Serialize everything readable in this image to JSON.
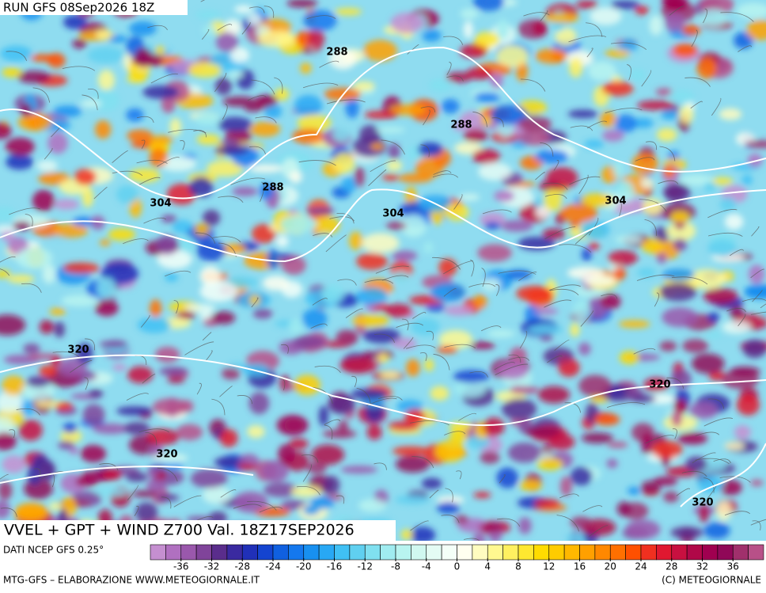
{
  "header": {
    "run": "RUN GFS 08Sep2026 18Z"
  },
  "map": {
    "contour_labels": [
      "288",
      "288",
      "288",
      "304",
      "304",
      "304",
      "320",
      "320",
      "320",
      "320"
    ]
  },
  "footer": {
    "title": "VVEL + GPT + WIND Z700 Val. 18Z17SEP2026",
    "source": "DATI NCEP GFS 0.25°",
    "credit_left": "MTG-GFS – ELABORAZIONE WWW.METEOGIORNALE.IT",
    "credit_right": "(C) METEOGIORNALE"
  },
  "colorbar": {
    "range": [
      -40,
      40
    ],
    "ticks": [
      -36,
      -32,
      -28,
      -24,
      -20,
      -16,
      -12,
      -8,
      -4,
      0,
      4,
      8,
      12,
      16,
      20,
      24,
      28,
      32,
      36
    ],
    "colors": [
      "#c58fd0",
      "#b070c0",
      "#9a58ac",
      "#80449a",
      "#5a2d8c",
      "#3a2aa0",
      "#2030b8",
      "#1444d0",
      "#1060e0",
      "#1478ee",
      "#1890f0",
      "#28a8f4",
      "#40c0f4",
      "#60d0f0",
      "#80e0f0",
      "#a0ecf0",
      "#b8f4f0",
      "#d0f8f0",
      "#e4fcf4",
      "#f4fff8",
      "#fffff0",
      "#fffcc0",
      "#fff890",
      "#fff060",
      "#ffe830",
      "#ffdc00",
      "#ffcc00",
      "#ffb800",
      "#ffa000",
      "#ff8800",
      "#ff7000",
      "#ff5000",
      "#f03020",
      "#e01830",
      "#c81040",
      "#b00848",
      "#a00050",
      "#900858",
      "#a0306c",
      "#b85088"
    ]
  }
}
